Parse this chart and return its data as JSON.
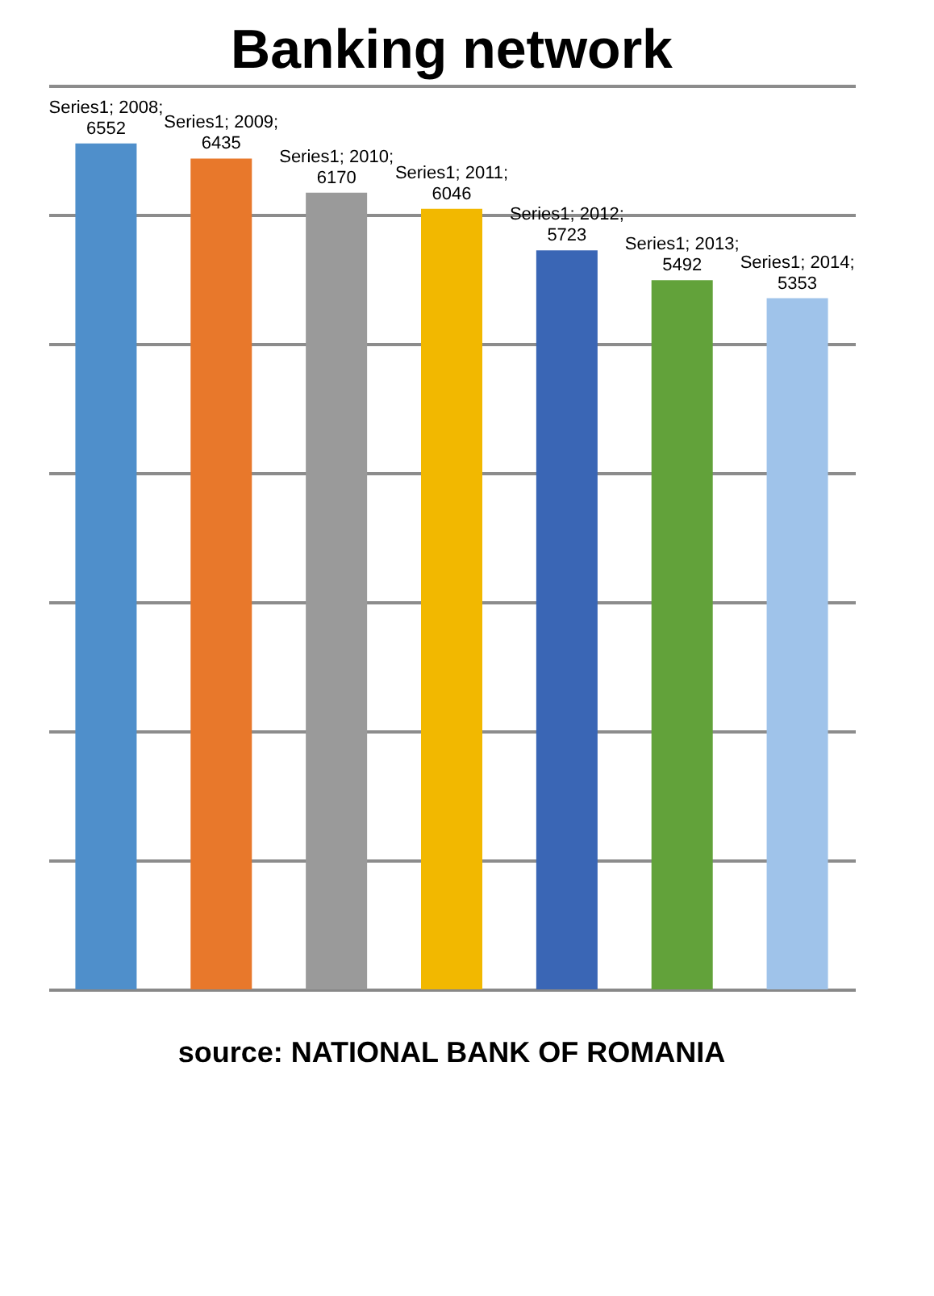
{
  "chart_data": {
    "type": "bar",
    "title": "Banking network",
    "categories": [
      null,
      null,
      null,
      null,
      null,
      null,
      null
    ],
    "values": [
      6552,
      6435,
      6170,
      6046,
      5723,
      5492,
      5353
    ],
    "colors": [
      "#4f8fcb",
      "#e8782b",
      "#9a9a9a",
      "#f2b800",
      "#3a66b5",
      "#62a23a",
      "#9fc3ea"
    ],
    "value_labels": [
      "Series1; 2008;\n6552",
      "Series1; 2009;\n6435",
      "Series1; 2010;\n6170",
      "Series1; 2011;\n6046",
      "Series1; 2012;\n5723",
      "Series1; 2013;\n5492",
      "Series1; 2014;\n5353"
    ],
    "ylim": [
      0,
      7000
    ],
    "yticks": [
      0,
      1000,
      2000,
      3000,
      4000,
      5000,
      6000,
      7000
    ],
    "grid": "y",
    "tick_labels": false,
    "legend": false,
    "annotations": [
      "source: NATIONAL BANK OF ROMANIA"
    ]
  }
}
